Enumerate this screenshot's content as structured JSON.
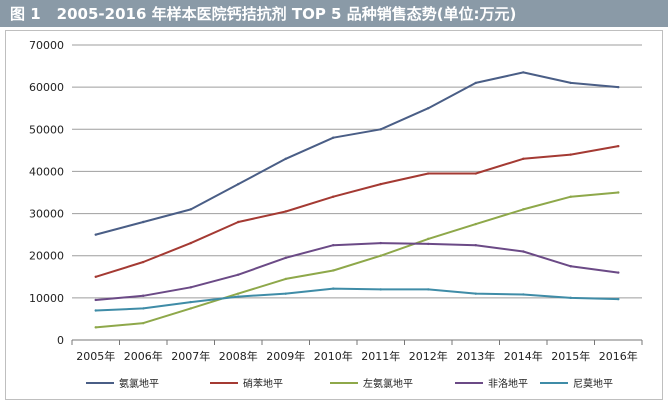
{
  "title": {
    "figure_label": "图 1",
    "text": "2005-2016 年样本医院钙拮抗剂 TOP 5 品种销售态势(单位:万元)"
  },
  "colors": {
    "title_bg": "#8a9aa7",
    "grid": "#9e9e9e"
  },
  "chart_data": {
    "type": "line",
    "title": "2005-2016 年样本医院钙拮抗剂 TOP 5 品种销售态势(单位:万元)",
    "xlabel": "",
    "ylabel": "",
    "categories": [
      "2005年",
      "2006年",
      "2007年",
      "2008年",
      "2009年",
      "2010年",
      "2011年",
      "2012年",
      "2013年",
      "2014年",
      "2015年",
      "2016年"
    ],
    "ylim": [
      0,
      70000
    ],
    "yticks": [
      "0",
      "10000",
      "20000",
      "30000",
      "40000",
      "50000",
      "60000",
      "70000"
    ],
    "grid": "horizontal",
    "legend_position": "bottom",
    "series": [
      {
        "name": "氨氯地平",
        "color": "#4a5e86",
        "values": [
          25000,
          28000,
          31000,
          37000,
          43000,
          48000,
          50000,
          55000,
          61000,
          63500,
          61000,
          60000
        ]
      },
      {
        "name": "硝苯地平",
        "color": "#a43a33",
        "values": [
          15000,
          18500,
          23000,
          28000,
          30500,
          34000,
          37000,
          39500,
          39500,
          43000,
          44000,
          46000
        ]
      },
      {
        "name": "左氨氯地平",
        "color": "#8ea84a",
        "values": [
          3000,
          4000,
          7500,
          11000,
          14500,
          16500,
          20000,
          24000,
          27500,
          31000,
          34000,
          35000
        ]
      },
      {
        "name": "非洛地平",
        "color": "#6b4a86",
        "values": [
          9500,
          10500,
          12500,
          15500,
          19500,
          22500,
          23000,
          22800,
          22500,
          21000,
          17500,
          16000
        ]
      },
      {
        "name": "尼莫地平",
        "color": "#3f8ca7",
        "values": [
          7000,
          7500,
          9000,
          10300,
          11000,
          12200,
          12000,
          12000,
          11000,
          10800,
          10000,
          9700
        ]
      }
    ]
  }
}
